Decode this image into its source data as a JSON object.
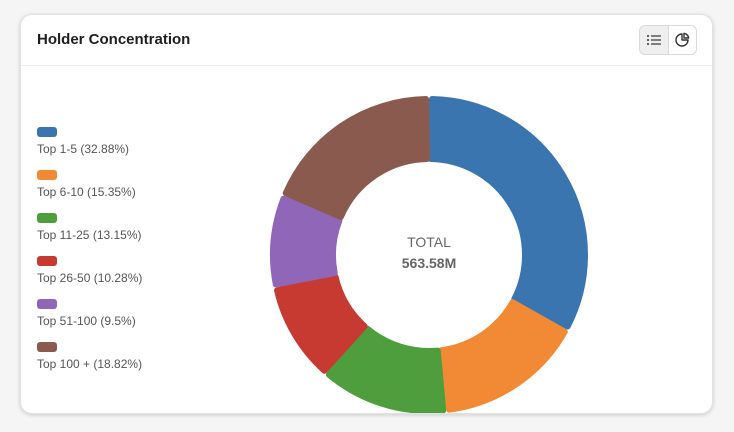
{
  "card": {
    "title": "Holder Concentration"
  },
  "toggle": {
    "list_icon": "list-icon",
    "pie_icon": "pie-chart-icon",
    "active": "pie"
  },
  "chart_data": {
    "type": "pie",
    "title": "",
    "center_label": "TOTAL",
    "center_value": "563.58M",
    "legend_position": "left",
    "categories": [
      "Top 1-5 (32.88%)",
      "Top 6-10 (15.35%)",
      "Top 11-25 (13.15%)",
      "Top 26-50 (10.28%)",
      "Top 51-100 (9.5%)",
      "Top 100 + (18.82%)"
    ],
    "values": [
      32.88,
      15.35,
      13.15,
      10.28,
      9.5,
      18.82
    ],
    "colors": [
      "#3a75b0",
      "#f28a35",
      "#4f9e3e",
      "#c73a32",
      "#9067b8",
      "#8b5a4f"
    ]
  }
}
